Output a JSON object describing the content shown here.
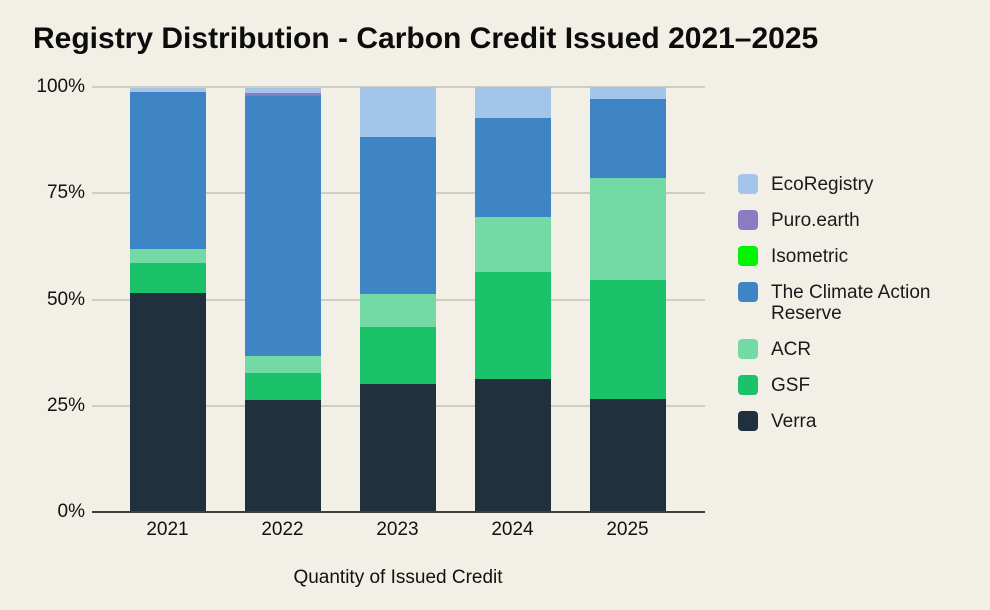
{
  "chart_data": {
    "type": "bar",
    "stacked": true,
    "title": "Registry Distribution - Carbon Credit Issued 2021–2025",
    "xlabel": "Quantity of Issued Credit",
    "ylabel": "",
    "categories": [
      "2021",
      "2022",
      "2023",
      "2024",
      "2025"
    ],
    "value_unit": "percent",
    "ylim": [
      0,
      100
    ],
    "yticks": [
      0,
      25,
      50,
      75,
      100
    ],
    "ytick_suffix": "%",
    "grid": true,
    "legend_position": "right",
    "background_color": "#f2efe6",
    "gridline_color": "#cfccc2",
    "axis_line_color": "#3d3d3d",
    "series": [
      {
        "name": "EcoRegistry",
        "color": "#a3c5e9",
        "values": [
          1.0,
          1.1,
          11.7,
          7.4,
          2.9
        ]
      },
      {
        "name": "Puro.earth",
        "color": "#8d7bc2",
        "values": [
          0,
          0.8,
          0,
          0,
          0
        ]
      },
      {
        "name": "Isometric",
        "color": "#00f300",
        "values": [
          0,
          0,
          0,
          0,
          0
        ]
      },
      {
        "name": "The Climate Action Reserve",
        "color": "#3f85c6",
        "values": [
          37.0,
          61.3,
          36.9,
          23.2,
          18.6
        ]
      },
      {
        "name": "ACR",
        "color": "#74daa5",
        "values": [
          3.3,
          4.0,
          7.9,
          12.9,
          23.8
        ]
      },
      {
        "name": "GSF",
        "color": "#1cc269",
        "values": [
          7.0,
          6.2,
          13.3,
          25.1,
          28.0
        ]
      },
      {
        "name": "Verra",
        "color": "#21303f",
        "values": [
          51.5,
          26.4,
          30.2,
          31.4,
          26.7
        ]
      }
    ],
    "stack_order_bottom_to_top": [
      "Verra",
      "GSF",
      "ACR",
      "The Climate Action Reserve",
      "Isometric",
      "Puro.earth",
      "EcoRegistry"
    ]
  }
}
